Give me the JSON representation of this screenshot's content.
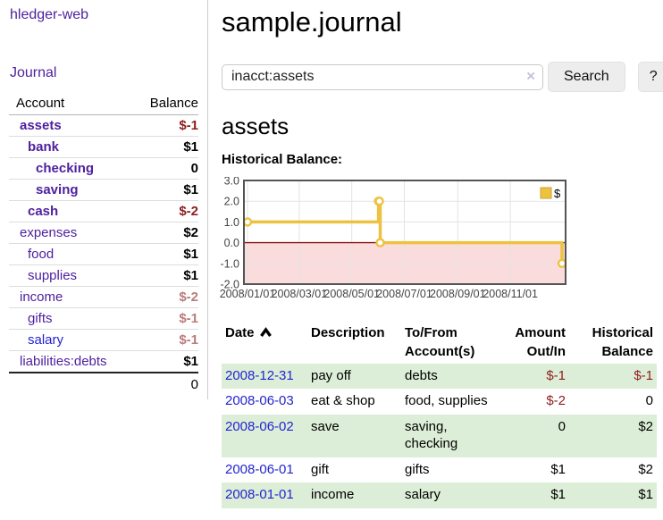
{
  "sidebar": {
    "app_title": "hledger-web",
    "nav": [
      {
        "label": "Journal"
      }
    ],
    "accounts_header": {
      "account": "Account",
      "balance": "Balance"
    },
    "accounts": [
      {
        "name": "assets",
        "balance": "$-1",
        "depth": 0,
        "bold": true,
        "balance_class": "neg-strong"
      },
      {
        "name": "bank",
        "balance": "$1",
        "depth": 1,
        "bold": true,
        "balance_class": ""
      },
      {
        "name": "checking",
        "balance": "0",
        "depth": 2,
        "bold": true,
        "balance_class": ""
      },
      {
        "name": "saving",
        "balance": "$1",
        "depth": 2,
        "bold": true,
        "balance_class": ""
      },
      {
        "name": "cash",
        "balance": "$-2",
        "depth": 1,
        "bold": true,
        "balance_class": "neg-strong"
      },
      {
        "name": "expenses",
        "balance": "$2",
        "depth": 0,
        "bold": false,
        "balance_class": ""
      },
      {
        "name": "food",
        "balance": "$1",
        "depth": 1,
        "bold": false,
        "balance_class": ""
      },
      {
        "name": "supplies",
        "balance": "$1",
        "depth": 1,
        "bold": false,
        "balance_class": ""
      },
      {
        "name": "income",
        "balance": "$-2",
        "depth": 0,
        "bold": false,
        "balance_class": "neg-muted"
      },
      {
        "name": "gifts",
        "balance": "$-1",
        "depth": 1,
        "bold": false,
        "balance_class": "neg-muted"
      },
      {
        "name": "salary",
        "balance": "$-1",
        "depth": 1,
        "bold": false,
        "balance_class": "neg-muted",
        "link_color": "blue"
      },
      {
        "name": "liabilities:debts",
        "balance": "$1",
        "depth": 0,
        "bold": false,
        "balance_class": ""
      }
    ],
    "total": "0"
  },
  "header": {
    "title": "sample.journal"
  },
  "search": {
    "value": "inacct:assets",
    "clear_icon": "×",
    "button": "Search",
    "help_button": "?"
  },
  "account_page": {
    "heading": "assets",
    "chart_label": "Historical Balance:"
  },
  "chart_data": {
    "type": "line",
    "step": true,
    "title": "Historical Balance:",
    "series": [
      {
        "name": "$",
        "color": "#edc240",
        "points": [
          [
            "2008-01-01",
            1
          ],
          [
            "2008-06-01",
            2
          ],
          [
            "2008-06-02",
            2
          ],
          [
            "2008-06-03",
            0
          ],
          [
            "2008-12-31",
            -1
          ]
        ]
      }
    ],
    "ylim": [
      -2,
      3
    ],
    "yticks": [
      "3.0",
      "2.0",
      "1.0",
      "0.0",
      "-1.0",
      "-2.0"
    ],
    "xticks": [
      "2008/01/01",
      "2008/03/01",
      "2008/05/01",
      "2008/07/01",
      "2008/09/01",
      "2008/11/01"
    ],
    "x_range": [
      "2008-01-01",
      "2008-12-31"
    ],
    "legend_label": "$",
    "legend_position": "top-right",
    "grid": true,
    "negative_fill": "#fbdcdc",
    "zero_line_color": "#8b1010"
  },
  "table": {
    "headers": {
      "date": "Date",
      "description": "Description",
      "tofrom": "To/From Account(s)",
      "amount": "Amount Out/In",
      "balance": "Historical Balance"
    },
    "sort": {
      "column": "date",
      "direction": "ascending"
    },
    "rows": [
      {
        "date": "2008-12-31",
        "description": "pay off",
        "accounts": "debts",
        "amount": "$-1",
        "amount_class": "neg",
        "balance": "$-1",
        "balance_class": "neg"
      },
      {
        "date": "2008-06-03",
        "description": "eat & shop",
        "accounts": "food, supplies",
        "amount": "$-2",
        "amount_class": "neg",
        "balance": "0",
        "balance_class": ""
      },
      {
        "date": "2008-06-02",
        "description": "save",
        "accounts": "saving, checking",
        "amount": "0",
        "amount_class": "",
        "balance": "$2",
        "balance_class": ""
      },
      {
        "date": "2008-06-01",
        "description": "gift",
        "accounts": "gifts",
        "amount": "$1",
        "amount_class": "",
        "balance": "$2",
        "balance_class": ""
      },
      {
        "date": "2008-01-01",
        "description": "income",
        "accounts": "salary",
        "amount": "$1",
        "amount_class": "",
        "balance": "$1",
        "balance_class": ""
      }
    ]
  },
  "colors": {
    "purple_link": "#4e219f",
    "blue_link": "#2424cf",
    "negative_strong": "#8f1d1d",
    "negative_muted": "#bb7b7b",
    "row_stripe_green": "#ddeed8",
    "chart_line": "#edc240",
    "chart_negative_fill": "#fbdcdc",
    "chart_zero_line": "#8b1010"
  }
}
